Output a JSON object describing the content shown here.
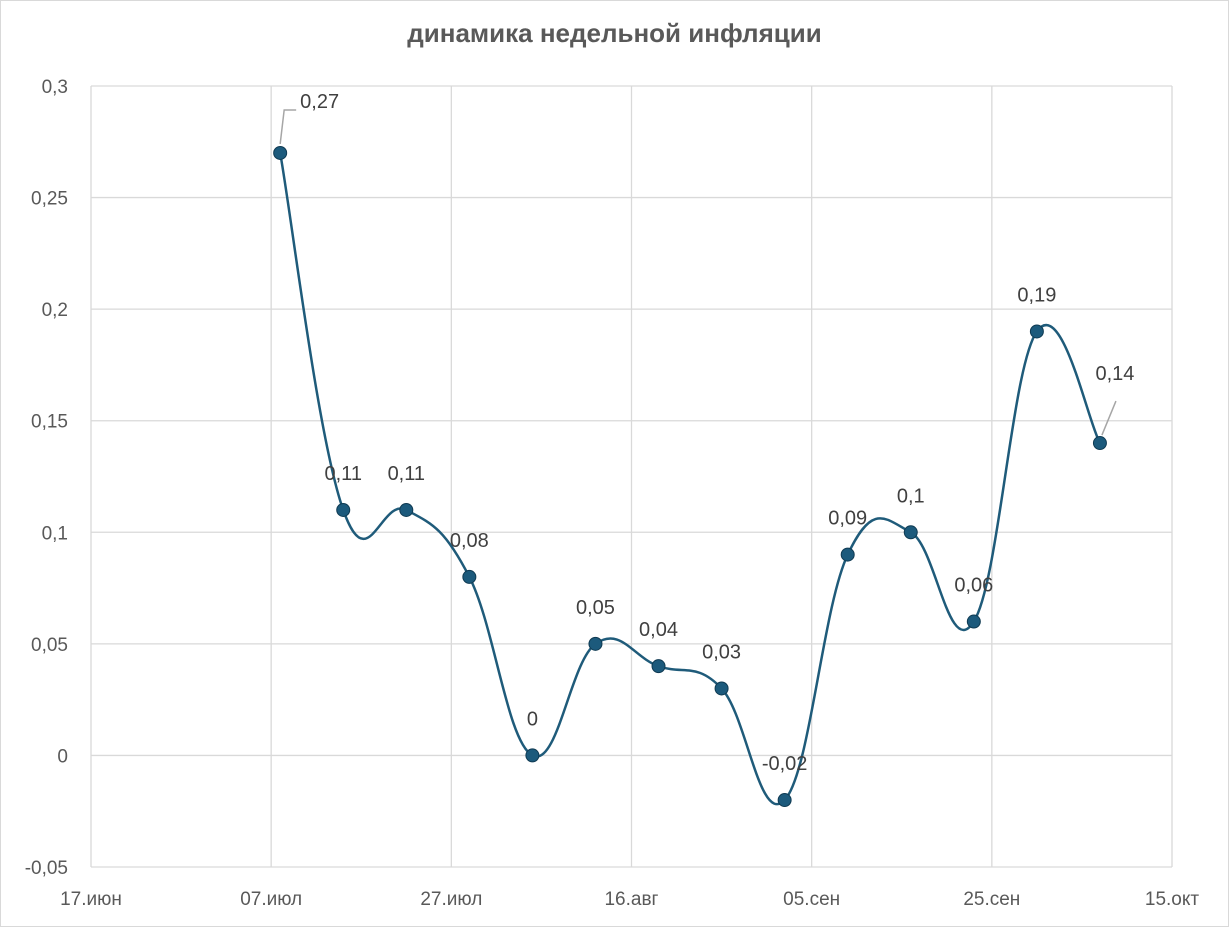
{
  "chart_data": {
    "type": "line",
    "title": "динамика недельной инфляции",
    "xlabel": "",
    "ylabel": "",
    "x_ticks": [
      "17.июн",
      "07.июл",
      "27.июл",
      "16.авг",
      "05.сен",
      "25.сен",
      "15.окт"
    ],
    "x_range_days": [
      0,
      120
    ],
    "y_ticks": [
      "-0,05",
      "0",
      "0,05",
      "0,1",
      "0,15",
      "0,2",
      "0,25",
      "0,3"
    ],
    "ylim": [
      -0.05,
      0.3
    ],
    "grid": true,
    "smooth": true,
    "series": [
      {
        "x": [
          "08.июл",
          "15.июл",
          "22.июл",
          "29.июл",
          "05.авг",
          "12.авг",
          "19.авг",
          "26.авг",
          "02.сен",
          "09.сен",
          "16.сен",
          "23.сен",
          "30.сен",
          "07.окт"
        ],
        "values": [
          0.27,
          0.11,
          0.11,
          0.08,
          0,
          0.05,
          0.04,
          0.03,
          -0.02,
          0.09,
          0.1,
          0.06,
          0.19,
          0.14
        ],
        "labels": [
          "0,27",
          "0,11",
          "0,11",
          "0,08",
          "0",
          "0,05",
          "0,04",
          "0,03",
          "-0,02",
          "0,09",
          "0,1",
          "0,06",
          "0,19",
          "0,14"
        ]
      }
    ],
    "colors": {
      "line": "#1f5b7a",
      "marker": "#1c5a7c",
      "grid": "#d9d9d9",
      "text": "#595959"
    }
  }
}
